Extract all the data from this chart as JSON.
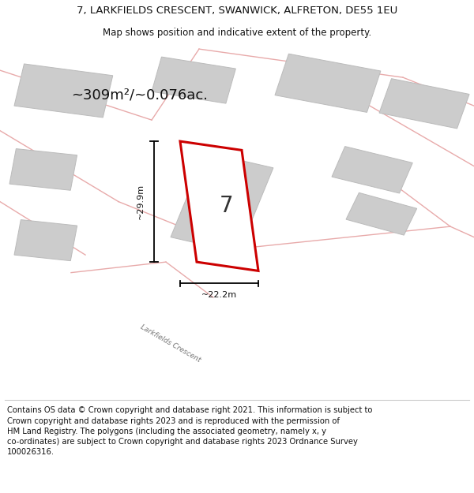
{
  "title": "7, LARKFIELDS CRESCENT, SWANWICK, ALFRETON, DE55 1EU",
  "subtitle": "Map shows position and indicative extent of the property.",
  "footer_lines": [
    "Contains OS data © Crown copyright and database right 2021. This information is subject to Crown copyright and database rights 2023 and is reproduced with the permission of",
    "HM Land Registry. The polygons (including the associated geometry, namely x, y",
    "co-ordinates) are subject to Crown copyright and database rights 2023 Ordnance Survey",
    "100026316."
  ],
  "area_text": "~309m²/~0.076ac.",
  "width_text": "~22.2m",
  "height_text": "~29.9m",
  "plot_number": "7",
  "map_bg": "#ede8e8",
  "plot_fill": "#ffffff",
  "plot_edge_color": "#cc0000",
  "building_fill": "#cccccc",
  "building_edge": "#bbbbbb",
  "road_line_color": "#e8aaaa",
  "title_fontsize": 9.5,
  "subtitle_fontsize": 8.5,
  "footer_fontsize": 7.2
}
